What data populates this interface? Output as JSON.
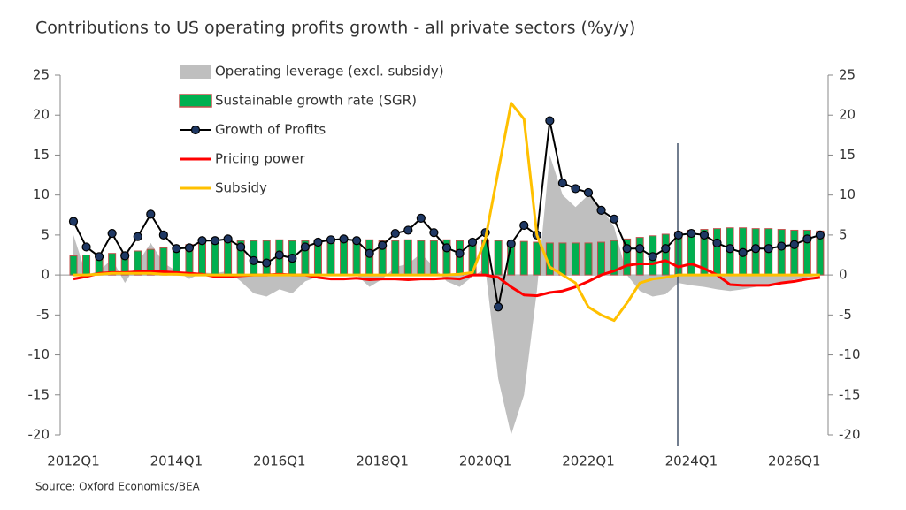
{
  "chart_data": {
    "type": "combo",
    "title": "Contributions to US operating profits growth - all private sectors (%y/y)",
    "source": "Source: Oxford Economics/BEA",
    "categories": [
      "2012Q1",
      null,
      null,
      null,
      null,
      null,
      null,
      null,
      "2014Q1",
      null,
      null,
      null,
      null,
      null,
      null,
      null,
      "2016Q1",
      null,
      null,
      null,
      null,
      null,
      null,
      null,
      "2018Q1",
      null,
      null,
      null,
      null,
      null,
      null,
      null,
      "2020Q1",
      null,
      null,
      null,
      null,
      null,
      null,
      null,
      "2022Q1",
      null,
      null,
      null,
      null,
      null,
      null,
      null,
      "2024Q1",
      null,
      null,
      null,
      null,
      null,
      null,
      null,
      "2026Q1",
      null,
      null
    ],
    "ylim": [
      -20,
      25
    ],
    "yticks": [
      -20,
      -15,
      -10,
      -5,
      0,
      5,
      10,
      15,
      20,
      25
    ],
    "y2lim": [
      -20,
      25
    ],
    "y2ticks": [
      -20,
      -15,
      -10,
      -5,
      0,
      5,
      10,
      15,
      20,
      25
    ],
    "series": [
      {
        "name": "Operating leverage (excl. subsidy)",
        "type": "area",
        "color": "#bfbfbf",
        "values": [
          5,
          0,
          0.5,
          2,
          -1,
          1.5,
          4,
          1.5,
          0.5,
          -0.5,
          0.3,
          0.2,
          0.5,
          -0.8,
          -2.3,
          -2.7,
          -1.8,
          -2.3,
          -0.8,
          -0.2,
          0.1,
          0.2,
          0,
          -1.5,
          -0.5,
          1,
          1.4,
          2.7,
          1,
          -0.8,
          -1.5,
          -0.2,
          0.8,
          -13,
          -20,
          -15,
          -2,
          15,
          10,
          8.5,
          10,
          8.5,
          6,
          0,
          -2,
          -2.7,
          -2.4,
          -1,
          -1.3,
          -1.5,
          -1.8,
          -2,
          -1.8,
          -1.5,
          -1.2,
          -0.9,
          -0.6,
          -0.3,
          0
        ]
      },
      {
        "name": "Sustainable growth rate (SGR)",
        "type": "bar",
        "color": "#00b050",
        "edgecolor": "#c0504d",
        "values": [
          2.4,
          2.5,
          2.5,
          2.7,
          2.8,
          3.0,
          3.2,
          3.4,
          3.6,
          3.8,
          4.0,
          4.1,
          4.2,
          4.3,
          4.3,
          4.3,
          4.4,
          4.3,
          4.3,
          4.4,
          4.3,
          4.3,
          4.3,
          4.4,
          4.3,
          4.3,
          4.4,
          4.3,
          4.3,
          4.4,
          4.3,
          4.4,
          4.4,
          4.3,
          4.2,
          4.2,
          4.1,
          4.0,
          4.0,
          4.0,
          4.0,
          4.1,
          4.3,
          4.5,
          4.7,
          4.9,
          5.1,
          5.4,
          5.6,
          5.7,
          5.8,
          5.9,
          5.9,
          5.8,
          5.8,
          5.7,
          5.6,
          5.6,
          5.5
        ]
      },
      {
        "name": "Growth of Profits",
        "type": "line",
        "color": "#000000",
        "marker": "#1f3864",
        "values": [
          6.7,
          3.5,
          2.3,
          5.2,
          2.4,
          4.8,
          7.6,
          5.0,
          3.3,
          3.4,
          4.3,
          4.3,
          4.5,
          3.5,
          1.8,
          1.5,
          2.5,
          2.1,
          3.5,
          4.1,
          4.4,
          4.5,
          4.3,
          2.7,
          3.7,
          5.2,
          5.6,
          7.1,
          5.3,
          3.4,
          2.7,
          4.1,
          5.3,
          -4.0,
          3.9,
          6.2,
          5.0,
          19.3,
          11.5,
          10.8,
          10.3,
          8.1,
          7.0,
          3.3,
          3.3,
          2.3,
          3.3,
          5.0,
          5.2,
          5.0,
          4.0,
          3.3,
          2.8,
          3.3,
          3.3,
          3.6,
          3.8,
          4.5,
          5.0
        ]
      },
      {
        "name": "Pricing power",
        "type": "line",
        "color": "#ff0000",
        "values": [
          -0.5,
          -0.2,
          0.2,
          0.3,
          0.3,
          0.4,
          0.5,
          0.4,
          0.3,
          0.2,
          0.1,
          -0.2,
          -0.2,
          -0.1,
          0,
          0,
          0.1,
          0,
          0,
          -0.3,
          -0.5,
          -0.5,
          -0.4,
          -0.6,
          -0.5,
          -0.5,
          -0.6,
          -0.5,
          -0.5,
          -0.4,
          -0.5,
          0,
          0,
          -0.3,
          -1.5,
          -2.5,
          -2.6,
          -2.2,
          -2.0,
          -1.5,
          -0.8,
          0,
          0.5,
          1.2,
          1.4,
          1.4,
          1.8,
          1.0,
          1.4,
          0.8,
          0,
          -1.2,
          -1.3,
          -1.3,
          -1.3,
          -1.0,
          -0.8,
          -0.5,
          -0.3
        ]
      },
      {
        "name": "Subsidy",
        "type": "line",
        "color": "#ffc000",
        "values": [
          0,
          0,
          0.1,
          0.2,
          0.2,
          0.2,
          0.2,
          0.1,
          0.1,
          0,
          0,
          0,
          0,
          0,
          0,
          0,
          0,
          0,
          0,
          0,
          0,
          0,
          0,
          0,
          0,
          0,
          0,
          0,
          0,
          0,
          0.1,
          0.3,
          4.5,
          13,
          21.5,
          19.5,
          5,
          1,
          0,
          -1,
          -4,
          -5,
          -5.7,
          -3.5,
          -1,
          -0.5,
          -0.3,
          0,
          0,
          0,
          0,
          0,
          0,
          0,
          0,
          0,
          0,
          0,
          0
        ]
      }
    ]
  }
}
